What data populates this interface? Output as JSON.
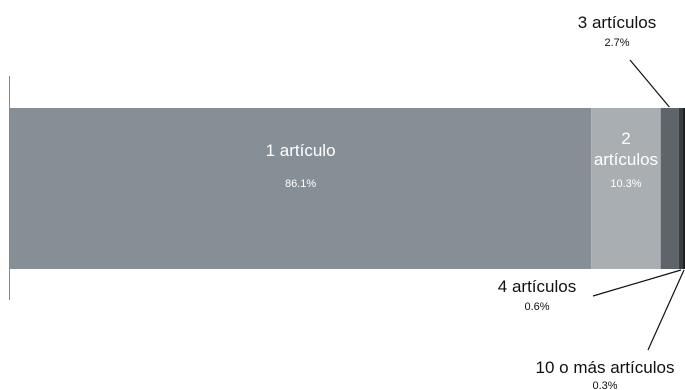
{
  "chart_data": {
    "type": "bar",
    "orientation": "horizontal-stacked",
    "series": [
      {
        "name": "1 artículo",
        "name_lines": [
          "1 artículo"
        ],
        "value": 86.1,
        "pct_label": "86.1%",
        "color": "#878f96",
        "label_color": "#ffffff",
        "label_placement": "inside"
      },
      {
        "name": "2 artículos",
        "name_lines": [
          "2",
          "artículos"
        ],
        "value": 10.3,
        "pct_label": "10.3%",
        "color": "#a9aeb2",
        "label_color": "#ffffff",
        "label_placement": "inside"
      },
      {
        "name": "3 artículos",
        "name_lines": [
          "3 artículos"
        ],
        "value": 2.7,
        "pct_label": "2.7%",
        "color": "#5e6469",
        "label_color": "#111111",
        "label_placement": "callout-top-right"
      },
      {
        "name": "4 artículos",
        "name_lines": [
          "4 artículos"
        ],
        "value": 0.6,
        "pct_label": "0.6%",
        "color": "#3a3d40",
        "label_color": "#111111",
        "label_placement": "callout-bottom-left"
      },
      {
        "name": "10 o más artículos",
        "name_lines": [
          "10 o más artículos"
        ],
        "value": 0.3,
        "pct_label": "0.3%",
        "color": "#1d1f21",
        "label_color": "#111111",
        "label_placement": "callout-bottom"
      }
    ],
    "xlim": [
      0,
      100
    ],
    "grid": false,
    "legend": "none"
  }
}
